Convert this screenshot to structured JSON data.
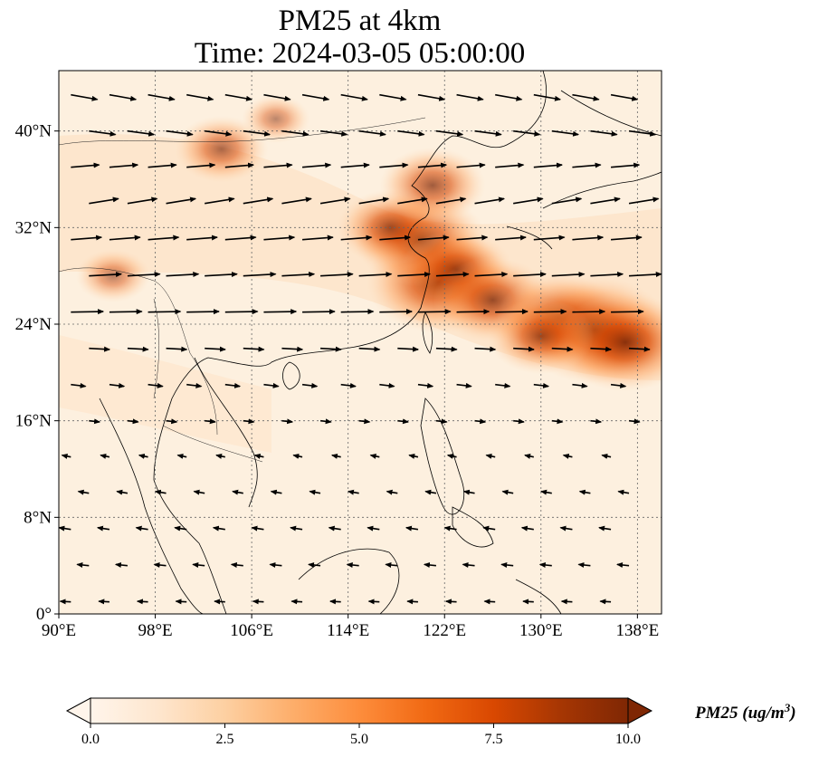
{
  "figure": {
    "title_line1": "PM25 at 4km",
    "title_line2": "Time: 2024-03-05 05:00:00"
  },
  "map": {
    "lon_range": [
      90,
      140
    ],
    "lat_range": [
      0,
      45
    ],
    "gridlines": "dotted",
    "x_ticks": [
      "90°E",
      "98°E",
      "106°E",
      "114°E",
      "122°E",
      "130°E",
      "138°E"
    ],
    "y_ticks": [
      "0°",
      "8°N",
      "16°N",
      "24°N",
      "32°N",
      "40°N"
    ],
    "field": {
      "name": "PM25",
      "hotspots": [
        {
          "lon": 121.5,
          "lat": 27.5,
          "value": 9
        },
        {
          "lon": 120.0,
          "lat": 31.0,
          "value": 8
        },
        {
          "lon": 117.5,
          "lat": 32.0,
          "value": 6
        },
        {
          "lon": 123.0,
          "lat": 28.5,
          "value": 6.5
        },
        {
          "lon": 126.0,
          "lat": 26.0,
          "value": 7
        },
        {
          "lon": 131.5,
          "lat": 24.5,
          "value": 7.5
        },
        {
          "lon": 134.5,
          "lat": 23.5,
          "value": 9.5
        },
        {
          "lon": 137.0,
          "lat": 22.5,
          "value": 8.5
        },
        {
          "lon": 130.0,
          "lat": 23.0,
          "value": 6
        },
        {
          "lon": 121.0,
          "lat": 35.5,
          "value": 6
        },
        {
          "lon": 103.5,
          "lat": 38.5,
          "value": 5
        },
        {
          "lon": 94.5,
          "lat": 28.0,
          "value": 3.5
        },
        {
          "lon": 108.0,
          "lat": 41.0,
          "value": 3
        }
      ]
    },
    "wind": {
      "rows": [
        {
          "lat": 43,
          "u": 4.5,
          "v": -0.8
        },
        {
          "lat": 40,
          "u": 4.5,
          "v": -0.6
        },
        {
          "lat": 37,
          "u": 4.8,
          "v": 0.4
        },
        {
          "lat": 34,
          "u": 5.0,
          "v": 0.8
        },
        {
          "lat": 31,
          "u": 5.2,
          "v": 0.4
        },
        {
          "lat": 28,
          "u": 5.5,
          "v": 0.3
        },
        {
          "lat": 25,
          "u": 5.5,
          "v": 0.1
        },
        {
          "lat": 22,
          "u": 3.5,
          "v": -0.2
        },
        {
          "lat": 19,
          "u": 2.5,
          "v": -0.3
        },
        {
          "lat": 16,
          "u": 1.8,
          "v": -0.2
        },
        {
          "lat": 13,
          "u": -1.5,
          "v": 0.3
        },
        {
          "lat": 10,
          "u": -1.8,
          "v": 0.3
        },
        {
          "lat": 7,
          "u": -2.0,
          "v": 0.3
        },
        {
          "lat": 4,
          "u": -2.0,
          "v": 0.2
        },
        {
          "lat": 1,
          "u": -1.8,
          "v": 0.1
        }
      ]
    }
  },
  "colorbar": {
    "min": 0,
    "max": 10,
    "tick_labels": [
      "0.0",
      "2.5",
      "5.0",
      "7.5",
      "10.0"
    ],
    "label_text": "PM25 (ug/m",
    "label_superscript": "3",
    "label_close": ")",
    "colors": [
      "#fff5eb",
      "#fee6ce",
      "#fdd0a2",
      "#fdae6b",
      "#fd8d3c",
      "#f16913",
      "#d94801",
      "#a63603",
      "#7f2704"
    ]
  }
}
